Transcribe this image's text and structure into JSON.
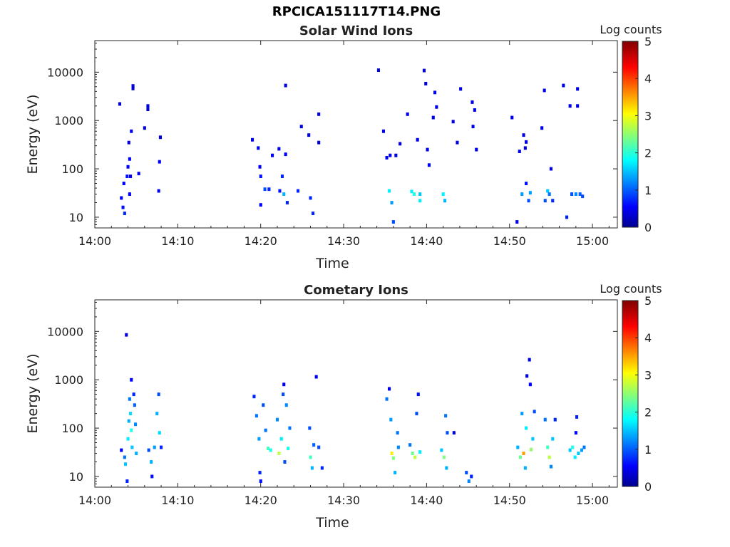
{
  "figure": {
    "title": "RPCICA151117T14.PNG"
  },
  "chart_data": [
    {
      "type": "heatmap",
      "title": "Solar Wind Ions",
      "xlabel": "Time",
      "ylabel": "Energy (eV)",
      "x_ticks": [
        "14:00",
        "14:10",
        "14:20",
        "14:30",
        "14:40",
        "14:50",
        "15:00"
      ],
      "x_range_minutes": [
        0,
        63
      ],
      "y_scale": "log",
      "y_ticks": [
        "10",
        "100",
        "1000",
        "10000"
      ],
      "ylim": [
        6,
        45000
      ],
      "colorbar": {
        "label": "Log counts",
        "ticks": [
          "0",
          "1",
          "2",
          "3",
          "4",
          "5"
        ],
        "range": [
          0,
          5
        ],
        "colormap": "jet"
      },
      "points": [
        [
          3.0,
          2200,
          0.4
        ],
        [
          3.2,
          25,
          0.6
        ],
        [
          3.4,
          16,
          0.7
        ],
        [
          3.6,
          12,
          0.8
        ],
        [
          3.5,
          50,
          0.6
        ],
        [
          3.9,
          70,
          0.7
        ],
        [
          4.0,
          110,
          0.6
        ],
        [
          4.1,
          350,
          0.5
        ],
        [
          4.2,
          160,
          0.6
        ],
        [
          4.3,
          70,
          0.6
        ],
        [
          4.4,
          600,
          0.5
        ],
        [
          4.6,
          5200,
          0.5
        ],
        [
          4.6,
          4600,
          0.4
        ],
        [
          4.2,
          30,
          0.6
        ],
        [
          5.3,
          80,
          0.6
        ],
        [
          6.0,
          700,
          0.5
        ],
        [
          6.4,
          2000,
          0.5
        ],
        [
          6.4,
          1700,
          0.4
        ],
        [
          7.7,
          35,
          0.6
        ],
        [
          7.8,
          140,
          0.6
        ],
        [
          7.9,
          450,
          0.5
        ],
        [
          19.0,
          400,
          0.5
        ],
        [
          19.7,
          270,
          0.5
        ],
        [
          19.9,
          110,
          0.6
        ],
        [
          20.0,
          70,
          0.7
        ],
        [
          20.0,
          18,
          0.6
        ],
        [
          20.5,
          38,
          1.0
        ],
        [
          21.0,
          38,
          0.8
        ],
        [
          21.4,
          190,
          0.6
        ],
        [
          22.2,
          260,
          0.5
        ],
        [
          22.3,
          35,
          0.7
        ],
        [
          22.6,
          70,
          0.8
        ],
        [
          22.8,
          30,
          1.5
        ],
        [
          23.0,
          5300,
          0.5
        ],
        [
          23.0,
          200,
          0.6
        ],
        [
          23.2,
          20,
          0.8
        ],
        [
          24.5,
          35,
          0.8
        ],
        [
          24.9,
          750,
          0.5
        ],
        [
          25.8,
          500,
          0.5
        ],
        [
          26.0,
          25,
          0.8
        ],
        [
          26.3,
          12,
          0.8
        ],
        [
          27.0,
          1350,
          0.5
        ],
        [
          27.0,
          350,
          0.5
        ],
        [
          34.2,
          11000,
          0.5
        ],
        [
          34.8,
          600,
          0.5
        ],
        [
          35.2,
          170,
          0.6
        ],
        [
          35.5,
          35,
          1.8
        ],
        [
          35.8,
          20,
          1.4
        ],
        [
          36.0,
          8,
          1.0
        ],
        [
          35.6,
          190,
          0.6
        ],
        [
          36.3,
          190,
          0.5
        ],
        [
          36.8,
          330,
          0.5
        ],
        [
          37.7,
          1350,
          0.5
        ],
        [
          38.2,
          34,
          1.8
        ],
        [
          38.5,
          30,
          2.0
        ],
        [
          38.9,
          400,
          0.5
        ],
        [
          39.2,
          30,
          1.6
        ],
        [
          39.2,
          22,
          1.8
        ],
        [
          39.7,
          10800,
          0.5
        ],
        [
          39.9,
          5800,
          0.5
        ],
        [
          40.1,
          250,
          0.5
        ],
        [
          40.3,
          120,
          0.6
        ],
        [
          40.8,
          1150,
          0.5
        ],
        [
          41.0,
          3800,
          0.5
        ],
        [
          41.2,
          1900,
          0.5
        ],
        [
          42.0,
          30,
          1.8
        ],
        [
          42.2,
          22,
          1.5
        ],
        [
          43.2,
          950,
          0.5
        ],
        [
          43.7,
          350,
          0.5
        ],
        [
          44.1,
          4500,
          0.5
        ],
        [
          45.5,
          2400,
          0.5
        ],
        [
          45.6,
          750,
          0.5
        ],
        [
          45.8,
          1650,
          0.5
        ],
        [
          46.0,
          250,
          0.5
        ],
        [
          50.3,
          1150,
          0.5
        ],
        [
          50.9,
          8,
          0.6
        ],
        [
          51.2,
          230,
          0.6
        ],
        [
          51.5,
          30,
          1.4
        ],
        [
          51.7,
          500,
          0.5
        ],
        [
          51.9,
          270,
          0.5
        ],
        [
          52.0,
          360,
          0.5
        ],
        [
          52.0,
          50,
          0.7
        ],
        [
          52.3,
          22,
          1.0
        ],
        [
          52.5,
          32,
          1.4
        ],
        [
          53.9,
          700,
          0.5
        ],
        [
          54.2,
          4200,
          0.5
        ],
        [
          54.3,
          22,
          1.0
        ],
        [
          54.6,
          35,
          1.6
        ],
        [
          54.8,
          30,
          1.2
        ],
        [
          55.0,
          100,
          0.6
        ],
        [
          55.2,
          22,
          0.8
        ],
        [
          56.5,
          5300,
          0.5
        ],
        [
          56.9,
          10,
          0.8
        ],
        [
          57.3,
          2000,
          0.5
        ],
        [
          57.5,
          30,
          1.0
        ],
        [
          58.0,
          30,
          1.3
        ],
        [
          58.2,
          4500,
          0.5
        ],
        [
          58.2,
          2000,
          0.5
        ],
        [
          58.5,
          30,
          1.1
        ],
        [
          58.8,
          27,
          1.0
        ]
      ]
    },
    {
      "type": "heatmap",
      "title": "Cometary Ions",
      "xlabel": "Time",
      "ylabel": "Energy (eV)",
      "x_ticks": [
        "14:00",
        "14:10",
        "14:20",
        "14:30",
        "14:40",
        "14:50",
        "15:00"
      ],
      "x_range_minutes": [
        0,
        63
      ],
      "y_scale": "log",
      "y_ticks": [
        "10",
        "100",
        "1000",
        "10000"
      ],
      "ylim": [
        6,
        45000
      ],
      "colorbar": {
        "label": "Log counts",
        "ticks": [
          "0",
          "1",
          "2",
          "3",
          "4",
          "5"
        ],
        "range": [
          0,
          5
        ],
        "colormap": "jet"
      },
      "points": [
        [
          3.2,
          35,
          0.6
        ],
        [
          3.6,
          25,
          1.2
        ],
        [
          3.7,
          18,
          1.6
        ],
        [
          3.9,
          8,
          0.8
        ],
        [
          3.8,
          8500,
          0.5
        ],
        [
          4.0,
          60,
          1.8
        ],
        [
          4.1,
          140,
          1.5
        ],
        [
          4.2,
          400,
          1.2
        ],
        [
          4.3,
          200,
          1.7
        ],
        [
          4.4,
          1000,
          0.6
        ],
        [
          4.4,
          90,
          2.0
        ],
        [
          4.5,
          40,
          1.6
        ],
        [
          4.7,
          500,
          0.8
        ],
        [
          4.8,
          300,
          1.1
        ],
        [
          4.9,
          120,
          1.3
        ],
        [
          5.0,
          30,
          1.5
        ],
        [
          6.5,
          35,
          1.0
        ],
        [
          6.8,
          20,
          1.5
        ],
        [
          6.9,
          10,
          0.7
        ],
        [
          7.2,
          40,
          1.4
        ],
        [
          7.5,
          200,
          1.5
        ],
        [
          7.7,
          500,
          1.0
        ],
        [
          7.8,
          80,
          1.7
        ],
        [
          8.0,
          40,
          0.8
        ],
        [
          19.2,
          450,
          0.8
        ],
        [
          19.5,
          180,
          1.2
        ],
        [
          19.8,
          60,
          1.4
        ],
        [
          19.9,
          12,
          0.8
        ],
        [
          20.0,
          8,
          0.7
        ],
        [
          20.3,
          300,
          1.0
        ],
        [
          20.6,
          90,
          1.2
        ],
        [
          20.9,
          38,
          2.2
        ],
        [
          21.2,
          35,
          2.0
        ],
        [
          22.0,
          150,
          1.3
        ],
        [
          22.2,
          30,
          2.8
        ],
        [
          22.5,
          60,
          1.8
        ],
        [
          22.7,
          500,
          1.0
        ],
        [
          22.8,
          800,
          0.5
        ],
        [
          22.9,
          20,
          1.0
        ],
        [
          23.1,
          300,
          1.3
        ],
        [
          23.3,
          38,
          2.0
        ],
        [
          23.5,
          100,
          1.2
        ],
        [
          25.9,
          100,
          1.0
        ],
        [
          26.0,
          25,
          2.2
        ],
        [
          26.2,
          15,
          1.5
        ],
        [
          26.4,
          45,
          1.1
        ],
        [
          26.7,
          1150,
          0.5
        ],
        [
          27.0,
          40,
          1.0
        ],
        [
          27.4,
          15,
          0.8
        ],
        [
          35.2,
          400,
          1.2
        ],
        [
          35.5,
          650,
          0.5
        ],
        [
          35.7,
          150,
          1.4
        ],
        [
          35.8,
          30,
          3.2
        ],
        [
          36.0,
          24,
          2.5
        ],
        [
          36.2,
          12,
          1.5
        ],
        [
          36.5,
          80,
          1.2
        ],
        [
          36.6,
          40,
          1.3
        ],
        [
          38.0,
          45,
          1.2
        ],
        [
          38.3,
          30,
          2.4
        ],
        [
          38.6,
          25,
          2.8
        ],
        [
          38.8,
          200,
          1.0
        ],
        [
          39.0,
          500,
          0.7
        ],
        [
          39.2,
          32,
          1.8
        ],
        [
          41.8,
          35,
          1.6
        ],
        [
          42.1,
          25,
          2.5
        ],
        [
          42.4,
          15,
          1.5
        ],
        [
          42.3,
          180,
          1.2
        ],
        [
          42.5,
          80,
          1.0
        ],
        [
          43.3,
          80,
          0.5
        ],
        [
          44.8,
          12,
          1.0
        ],
        [
          45.1,
          8,
          1.3
        ],
        [
          45.4,
          10,
          0.8
        ],
        [
          51.0,
          40,
          1.5
        ],
        [
          51.3,
          25,
          2.4
        ],
        [
          51.5,
          200,
          1.4
        ],
        [
          51.7,
          30,
          3.6
        ],
        [
          51.9,
          15,
          1.5
        ],
        [
          52.0,
          100,
          1.8
        ],
        [
          52.1,
          1200,
          0.5
        ],
        [
          52.4,
          2600,
          0.5
        ],
        [
          52.5,
          800,
          0.6
        ],
        [
          52.6,
          36,
          2.6
        ],
        [
          52.8,
          60,
          1.6
        ],
        [
          53.0,
          220,
          1.0
        ],
        [
          54.3,
          150,
          1.2
        ],
        [
          54.6,
          40,
          2.2
        ],
        [
          54.8,
          25,
          2.8
        ],
        [
          55.0,
          16,
          1.3
        ],
        [
          55.2,
          60,
          1.6
        ],
        [
          55.5,
          150,
          0.8
        ],
        [
          57.3,
          35,
          1.6
        ],
        [
          57.6,
          40,
          2.0
        ],
        [
          57.9,
          25,
          1.8
        ],
        [
          58.1,
          170,
          0.8
        ],
        [
          58.3,
          30,
          1.6
        ],
        [
          58.7,
          35,
          1.4
        ],
        [
          59.0,
          40,
          1.2
        ],
        [
          58.0,
          80,
          0.6
        ]
      ]
    }
  ]
}
